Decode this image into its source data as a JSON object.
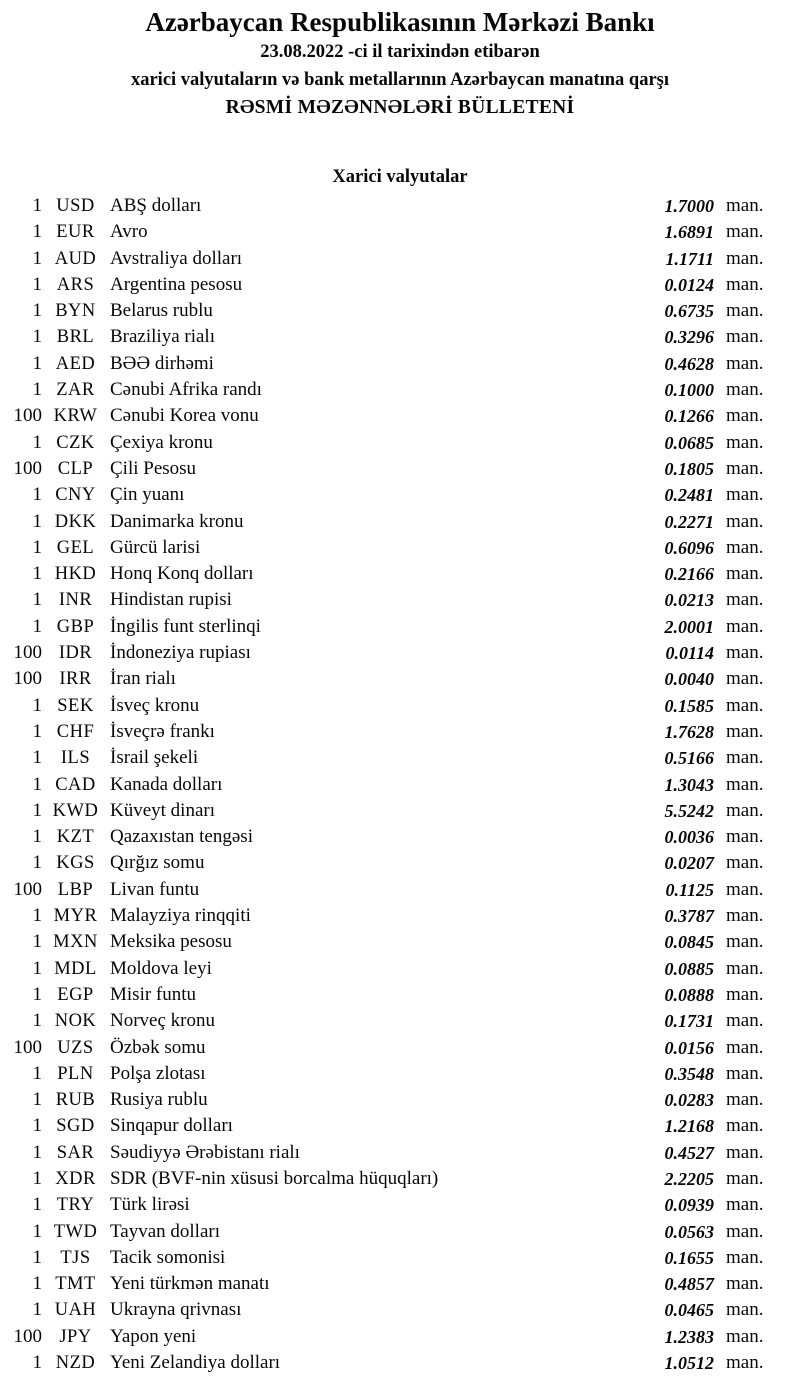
{
  "header": {
    "title": "Azərbaycan Respublikasının Mərkəzi Bankı",
    "date_line": "23.08.2022 -ci il tarixindən etibarən",
    "subtitle": "xarici valyutaların və bank metallarının Azərbaycan manatına qarşı",
    "bulletin_line": "RƏSMİ MƏZƏNNƏLƏRİ BÜLLETENİ"
  },
  "section": {
    "title": "Xarici valyutalar"
  },
  "unit_suffix": "man.",
  "colors": {
    "text": "#070707",
    "background": "#ffffff"
  },
  "currencies": [
    {
      "qty": "1",
      "code": "USD",
      "name": "ABŞ dolları",
      "rate": "1.7000"
    },
    {
      "qty": "1",
      "code": "EUR",
      "name": "Avro",
      "rate": "1.6891"
    },
    {
      "qty": "1",
      "code": "AUD",
      "name": "Avstraliya dolları",
      "rate": "1.1711"
    },
    {
      "qty": "1",
      "code": "ARS",
      "name": "Argentina pesosu",
      "rate": "0.0124"
    },
    {
      "qty": "1",
      "code": "BYN",
      "name": "Belarus rublu",
      "rate": "0.6735"
    },
    {
      "qty": "1",
      "code": "BRL",
      "name": "Braziliya rialı",
      "rate": "0.3296"
    },
    {
      "qty": "1",
      "code": "AED",
      "name": "BƏƏ dirhəmi",
      "rate": "0.4628"
    },
    {
      "qty": "1",
      "code": "ZAR",
      "name": "Cənubi Afrika randı",
      "rate": "0.1000"
    },
    {
      "qty": "100",
      "code": "KRW",
      "name": "Cənubi Korea vonu",
      "rate": "0.1266"
    },
    {
      "qty": "1",
      "code": "CZK",
      "name": "Çexiya kronu",
      "rate": "0.0685"
    },
    {
      "qty": "100",
      "code": "CLP",
      "name": "Çili Pesosu",
      "rate": "0.1805"
    },
    {
      "qty": "1",
      "code": "CNY",
      "name": "Çin yuanı",
      "rate": "0.2481"
    },
    {
      "qty": "1",
      "code": "DKK",
      "name": "Danimarka kronu",
      "rate": "0.2271"
    },
    {
      "qty": "1",
      "code": "GEL",
      "name": "Gürcü larisi",
      "rate": "0.6096"
    },
    {
      "qty": "1",
      "code": "HKD",
      "name": "Honq Konq dolları",
      "rate": "0.2166"
    },
    {
      "qty": "1",
      "code": "INR",
      "name": "Hindistan rupisi",
      "rate": "0.0213"
    },
    {
      "qty": "1",
      "code": "GBP",
      "name": "İngilis funt sterlinqi",
      "rate": "2.0001"
    },
    {
      "qty": "100",
      "code": "IDR",
      "name": "İndoneziya rupiası",
      "rate": "0.0114"
    },
    {
      "qty": "100",
      "code": "IRR",
      "name": "İran rialı",
      "rate": "0.0040"
    },
    {
      "qty": "1",
      "code": "SEK",
      "name": "İsveç kronu",
      "rate": "0.1585"
    },
    {
      "qty": "1",
      "code": "CHF",
      "name": "İsveçrə frankı",
      "rate": "1.7628"
    },
    {
      "qty": "1",
      "code": "ILS",
      "name": "İsrail şekeli",
      "rate": "0.5166"
    },
    {
      "qty": "1",
      "code": "CAD",
      "name": "Kanada dolları",
      "rate": "1.3043"
    },
    {
      "qty": "1",
      "code": "KWD",
      "name": "Küveyt dinarı",
      "rate": "5.5242"
    },
    {
      "qty": "1",
      "code": "KZT",
      "name": "Qazaxıstan tengəsi",
      "rate": "0.0036"
    },
    {
      "qty": "1",
      "code": "KGS",
      "name": "Qırğız somu",
      "rate": "0.0207"
    },
    {
      "qty": "100",
      "code": "LBP",
      "name": "Livan funtu",
      "rate": "0.1125"
    },
    {
      "qty": "1",
      "code": "MYR",
      "name": "Malayziya rinqqiti",
      "rate": "0.3787"
    },
    {
      "qty": "1",
      "code": "MXN",
      "name": "Meksika pesosu",
      "rate": "0.0845"
    },
    {
      "qty": "1",
      "code": "MDL",
      "name": "Moldova leyi",
      "rate": "0.0885"
    },
    {
      "qty": "1",
      "code": "EGP",
      "name": "Misir funtu",
      "rate": "0.0888"
    },
    {
      "qty": "1",
      "code": "NOK",
      "name": "Norveç kronu",
      "rate": "0.1731"
    },
    {
      "qty": "100",
      "code": "UZS",
      "name": "Özbək somu",
      "rate": "0.0156"
    },
    {
      "qty": "1",
      "code": "PLN",
      "name": "Polşa zlotası",
      "rate": "0.3548"
    },
    {
      "qty": "1",
      "code": "RUB",
      "name": "Rusiya rublu",
      "rate": "0.0283"
    },
    {
      "qty": "1",
      "code": "SGD",
      "name": "Sinqapur dolları",
      "rate": "1.2168"
    },
    {
      "qty": "1",
      "code": "SAR",
      "name": "Səudiyyə Ərəbistanı rialı",
      "rate": "0.4527"
    },
    {
      "qty": "1",
      "code": "XDR",
      "name": "SDR (BVF-nin xüsusi borcalma hüquqları)",
      "rate": "2.2205"
    },
    {
      "qty": "1",
      "code": "TRY",
      "name": "Türk lirəsi",
      "rate": "0.0939"
    },
    {
      "qty": "1",
      "code": "TWD",
      "name": "Tayvan dolları",
      "rate": "0.0563"
    },
    {
      "qty": "1",
      "code": "TJS",
      "name": "Tacik somonisi",
      "rate": "0.1655"
    },
    {
      "qty": "1",
      "code": "TMT",
      "name": "Yeni türkmən manatı",
      "rate": "0.4857"
    },
    {
      "qty": "1",
      "code": "UAH",
      "name": "Ukrayna qrivnası",
      "rate": "0.0465"
    },
    {
      "qty": "100",
      "code": "JPY",
      "name": "Yapon yeni",
      "rate": "1.2383"
    },
    {
      "qty": "1",
      "code": "NZD",
      "name": "Yeni Zelandiya dolları",
      "rate": "1.0512"
    }
  ]
}
